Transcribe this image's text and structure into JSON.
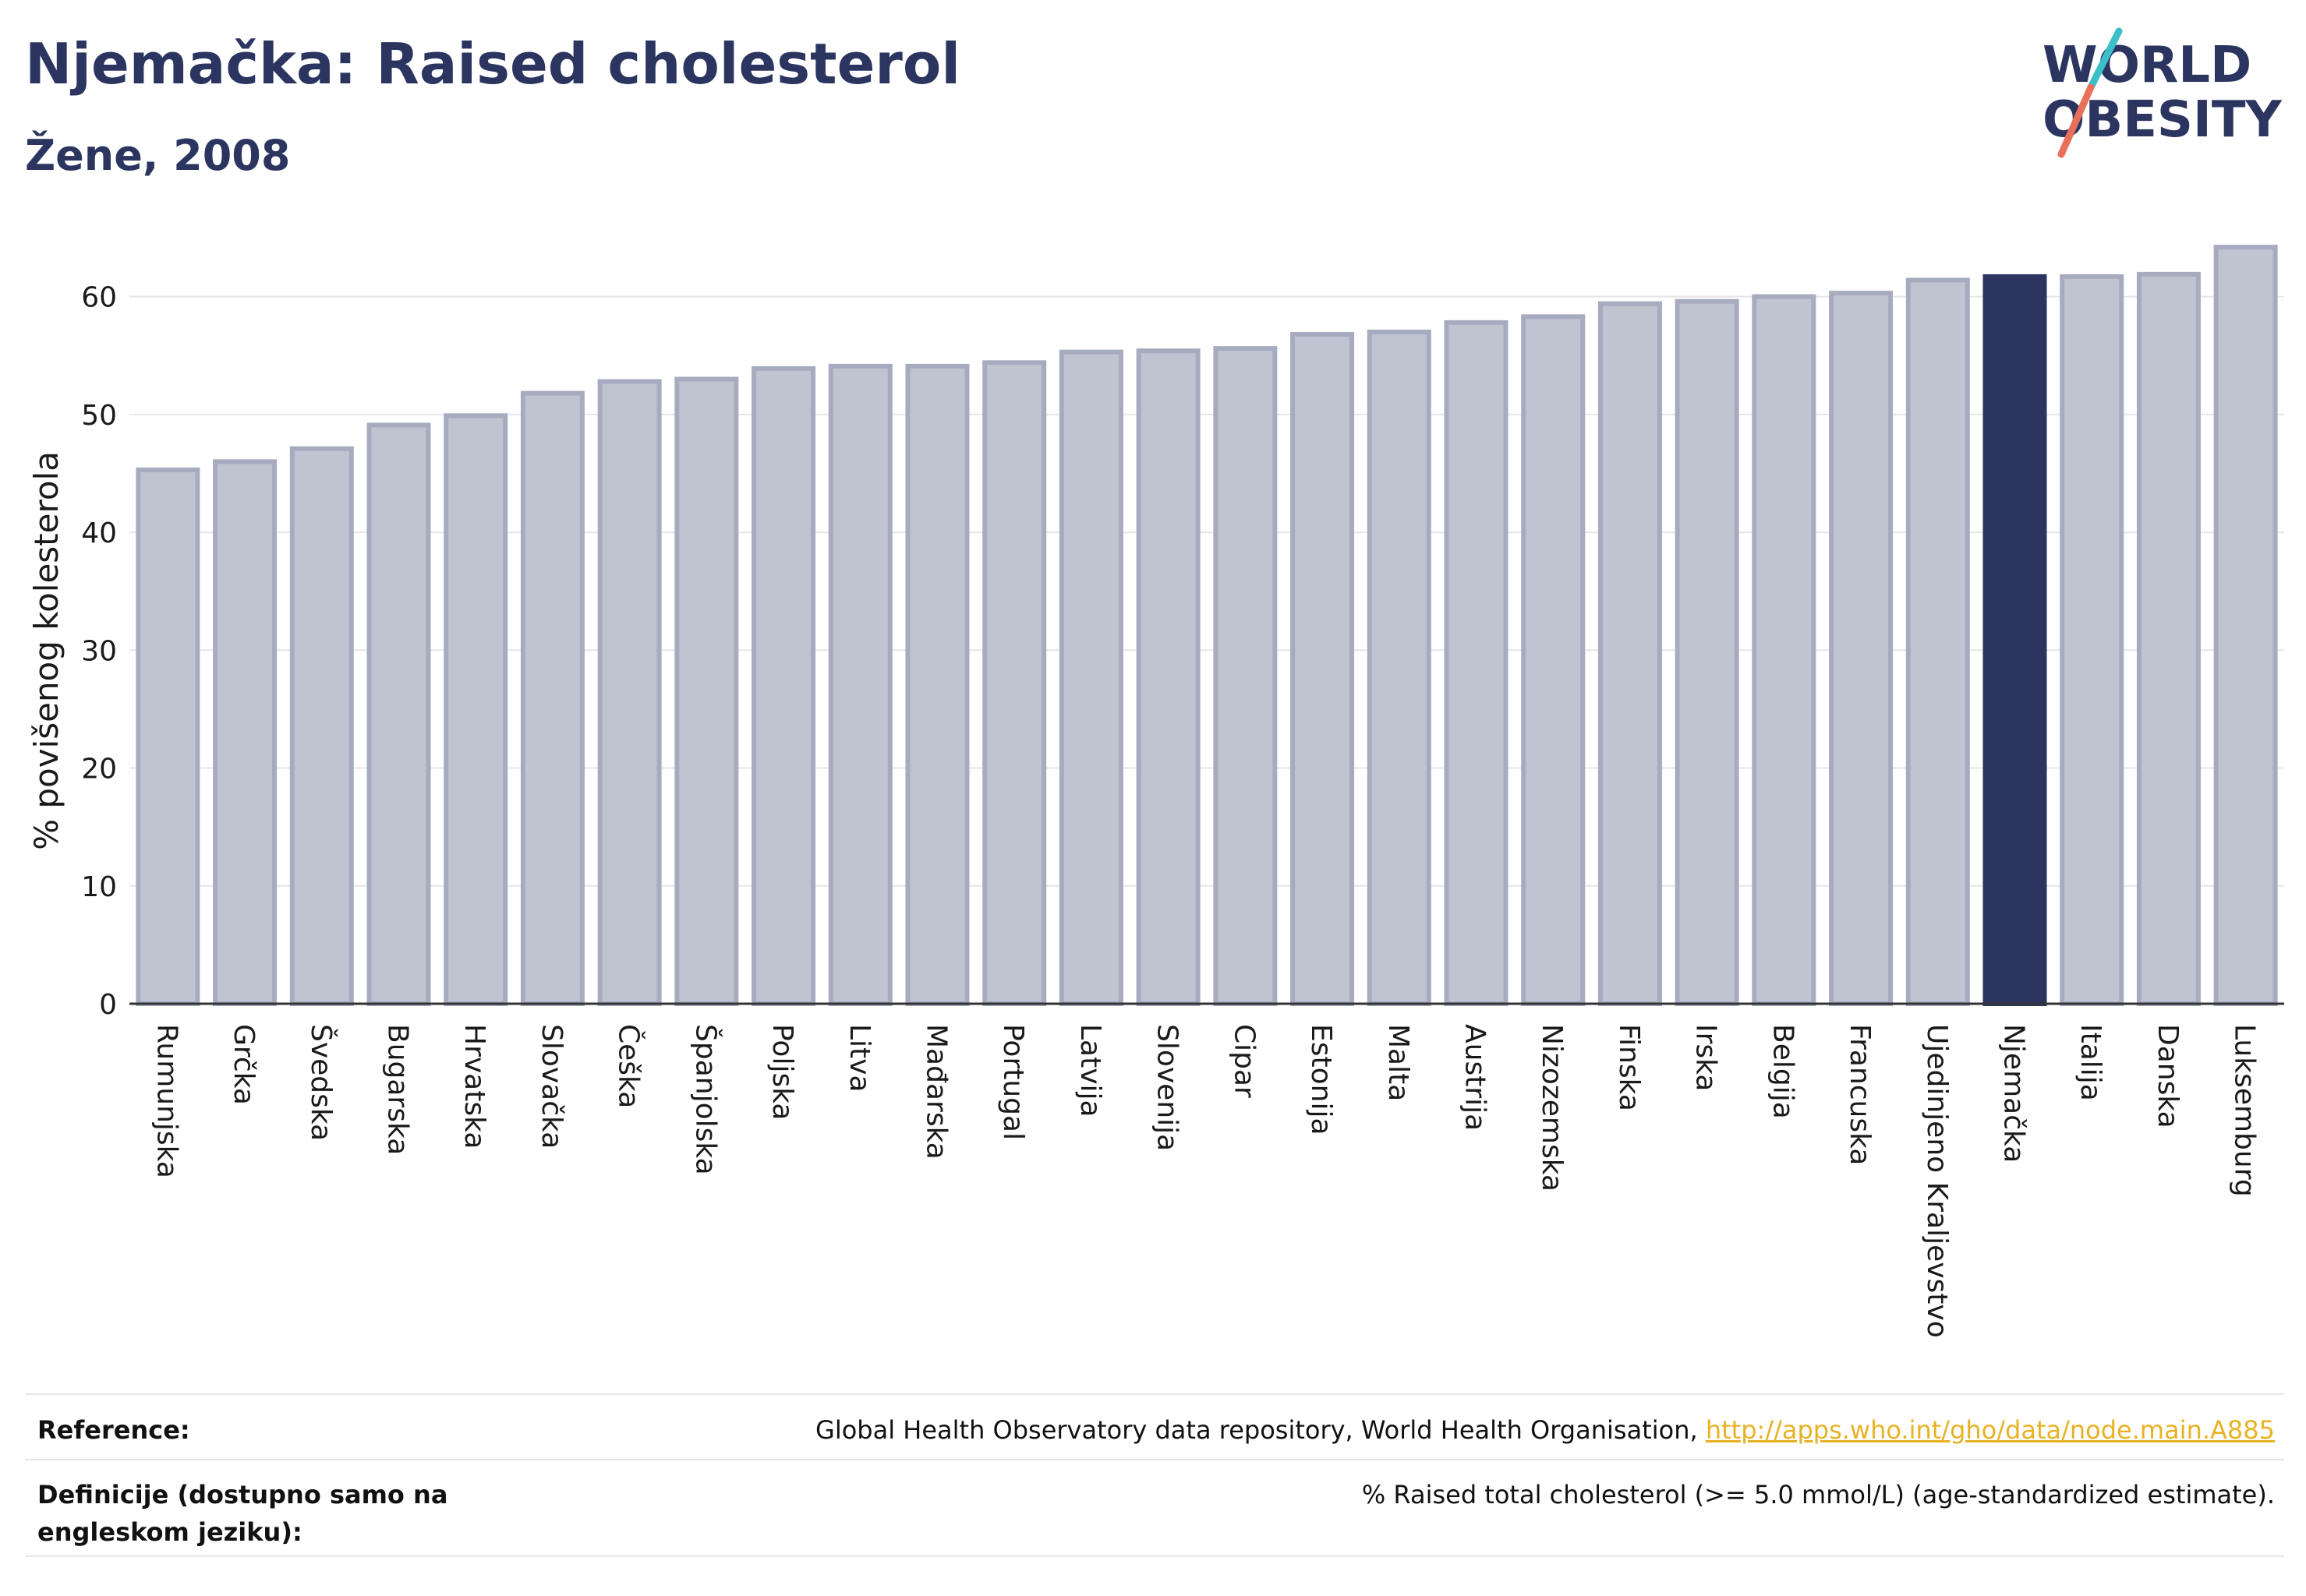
{
  "title": "Njemačka: Raised cholesterol",
  "subtitle": "Žene, 2008",
  "logo": {
    "line1": "WORLD",
    "line2": "OBESITY",
    "accent_teal": "#3bbfc9",
    "accent_coral": "#e8705a"
  },
  "colors": {
    "bar": "#c0c3d0",
    "bar_border": "#a7abc0",
    "highlight": "#2b3560",
    "grid": "#e6e6ea",
    "axis": "#333333"
  },
  "chart_data": {
    "type": "bar",
    "title": "Njemačka: Raised cholesterol",
    "subtitle": "Žene, 2008",
    "xlabel": "",
    "ylabel": "% povišenog kolesterola",
    "ylim": [
      0,
      65
    ],
    "yticks": [
      0,
      10,
      20,
      30,
      40,
      50,
      60
    ],
    "grid": true,
    "highlight": "Njemačka",
    "categories": [
      "Rumunjska",
      "Grčka",
      "Švedska",
      "Bugarska",
      "Hrvatska",
      "Slovačka",
      "Češka",
      "Španjolska",
      "Poljska",
      "Litva",
      "Mađarska",
      "Portugal",
      "Latvija",
      "Slovenija",
      "Cipar",
      "Estonija",
      "Malta",
      "Austrija",
      "Nizozemska",
      "Finska",
      "Irska",
      "Belgija",
      "Francuska",
      "Ujedinjeno Kraljevstvo",
      "Njemačka",
      "Italija",
      "Danska",
      "Luksemburg"
    ],
    "values": [
      45.3,
      46.0,
      47.1,
      49.1,
      49.9,
      51.8,
      52.8,
      53.0,
      53.9,
      54.1,
      54.1,
      54.4,
      55.3,
      55.4,
      55.6,
      56.8,
      57.0,
      57.8,
      58.3,
      59.4,
      59.6,
      60.0,
      60.3,
      61.4,
      61.7,
      61.7,
      61.9,
      64.2
    ]
  },
  "footer": {
    "reference_label": "Reference:",
    "reference_text": "Global Health Observatory data repository, World Health Organisation, ",
    "reference_link": "http://apps.who.int/gho/data/node.main.A885",
    "definition_label": "Definicije (dostupno samo na engleskom jeziku):",
    "definition_text": "% Raised total cholesterol (>= 5.0 mmol/L) (age-standardized estimate)."
  }
}
